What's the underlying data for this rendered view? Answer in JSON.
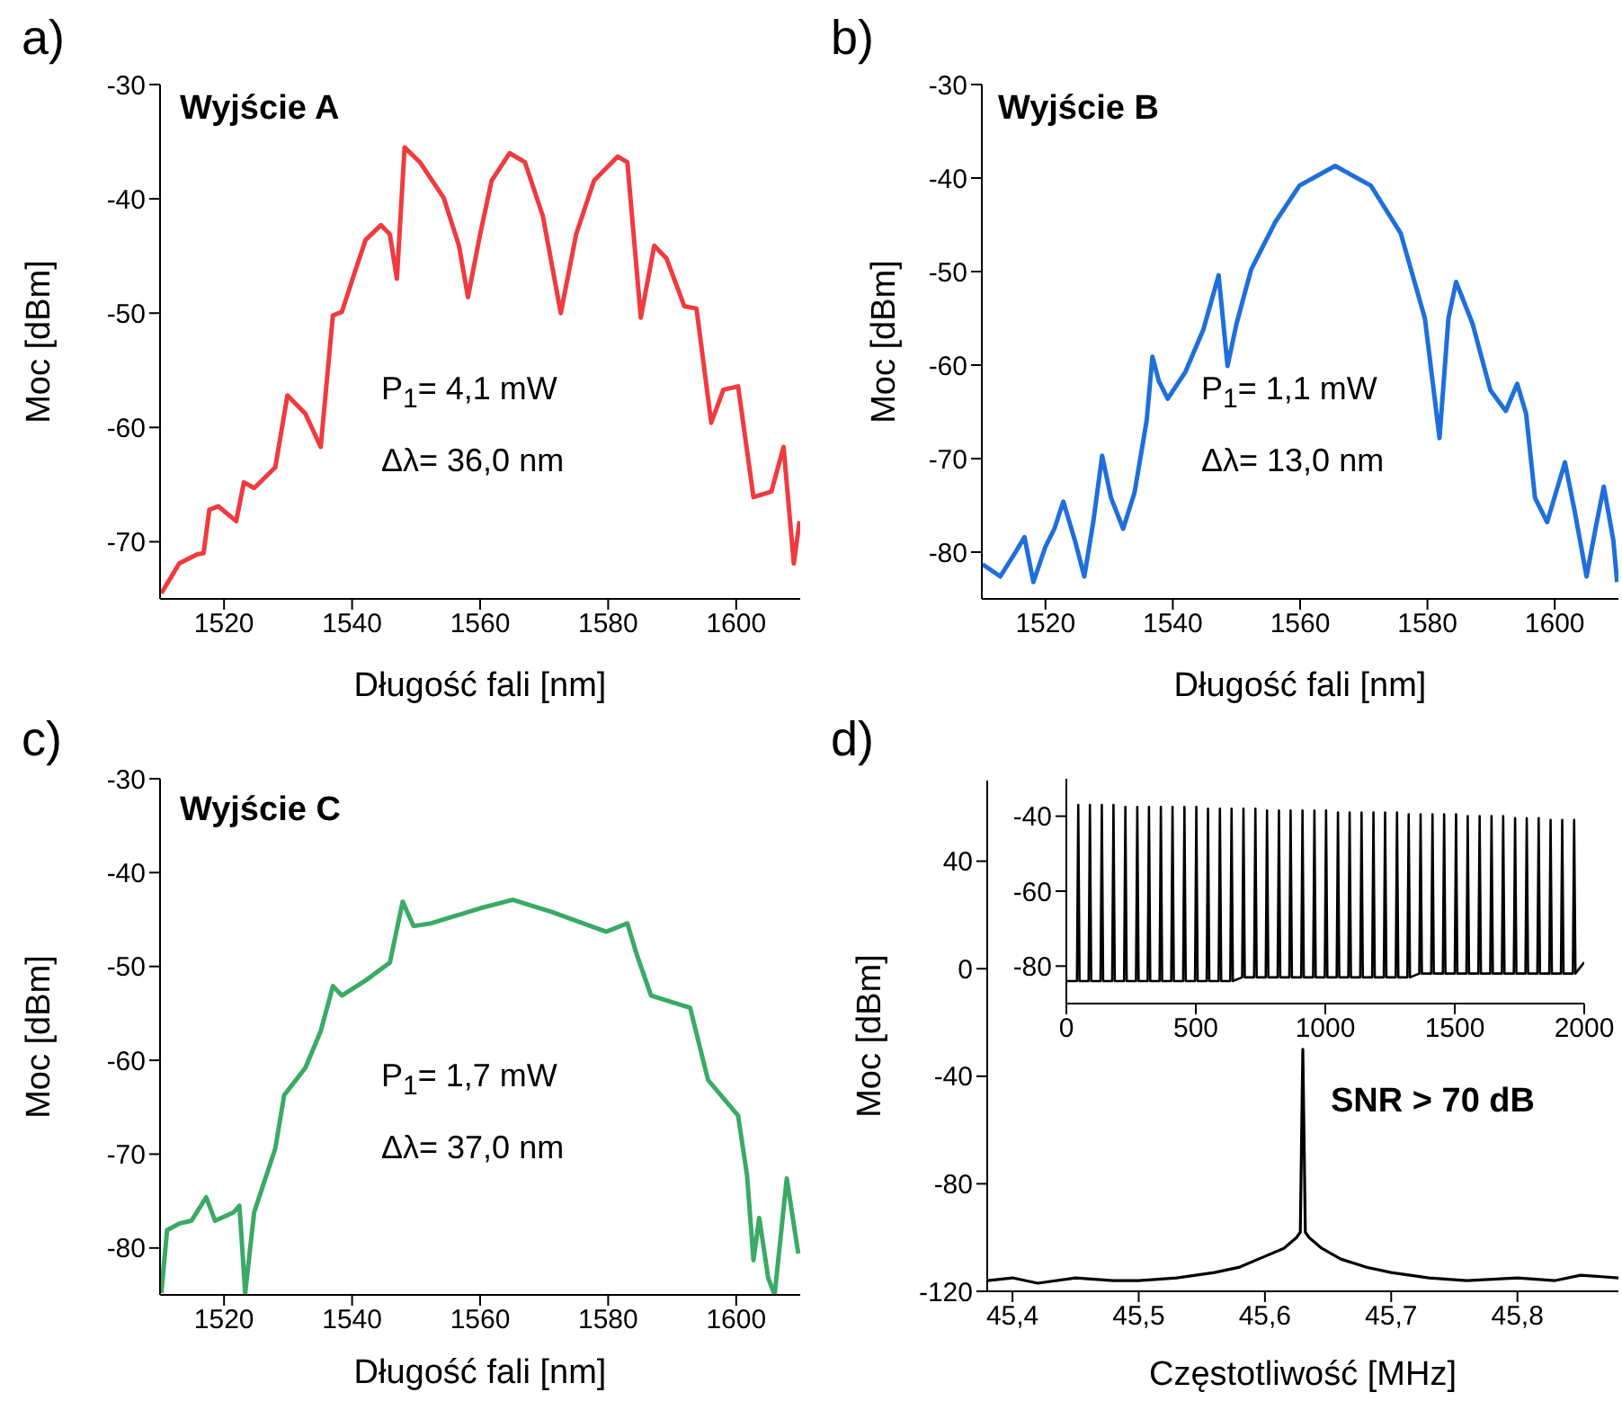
{
  "chart_data": [
    {
      "type": "line",
      "title": "a)",
      "xlabel": "Długość fali [nm]",
      "ylabel": "Moc [dBm]",
      "annotations": [
        "Wyjście A",
        "P$_{1}$= 4,1 mW",
        "Δλ= 36,0 nm"
      ],
      "xlim": [
        1510,
        1610
      ],
      "xticks": [
        1520,
        1540,
        1560,
        1580,
        1600
      ],
      "ylim": [
        -75,
        -30
      ],
      "yticks": [
        -30,
        -40,
        -50,
        -60,
        -70
      ],
      "marker": "none",
      "color": "#ef3b3f",
      "x": [
        1510.2,
        1513,
        1515.8,
        1516.8,
        1517.7,
        1519.1,
        1521.9,
        1523.1,
        1524.7,
        1528,
        1529.9,
        1532.7,
        1535.1,
        1537,
        1538.4,
        1540.2,
        1542.1,
        1544.5,
        1545.9,
        1547,
        1548.2,
        1550.6,
        1554.3,
        1556.7,
        1558.1,
        1560,
        1561.8,
        1564.6,
        1567,
        1569.8,
        1572.6,
        1575,
        1577.8,
        1581.5,
        1583,
        1585.1,
        1587.2,
        1589.1,
        1591.9,
        1593.8,
        1596.1,
        1598,
        1600.3,
        1602.7,
        1605.5,
        1607.4,
        1609,
        1609.9
      ],
      "values": [
        -74.5,
        -71.9,
        -71.1,
        -71,
        -67.2,
        -66.9,
        -68.2,
        -64.8,
        -65.3,
        -63.5,
        -57.2,
        -58.8,
        -61.7,
        -50.2,
        -49.9,
        -46.8,
        -43.6,
        -42.3,
        -43.1,
        -47,
        -35.5,
        -36.8,
        -39.9,
        -44.1,
        -48.6,
        -43.1,
        -38.4,
        -36,
        -36.8,
        -41.5,
        -50,
        -43.1,
        -38.4,
        -36.3,
        -36.8,
        -50.4,
        -44.1,
        -45.2,
        -49.4,
        -49.6,
        -59.6,
        -56.7,
        -56.4,
        -66.1,
        -65.6,
        -61.7,
        -71.9,
        -68.2
      ]
    },
    {
      "type": "line",
      "title": "b)",
      "xlabel": "Długość fali [nm]",
      "ylabel": "Moc [dBm]",
      "annotations": [
        "Wyjście B",
        "P$_{1}$= 1,1 mW",
        "Δλ= 13,0 nm"
      ],
      "xlim": [
        1510,
        1610
      ],
      "xticks": [
        1520,
        1540,
        1560,
        1580,
        1600
      ],
      "ylim": [
        -85,
        -30
      ],
      "yticks": [
        -30,
        -40,
        -50,
        -60,
        -70,
        -80
      ],
      "marker": "none",
      "color": "#1f6fdb",
      "x": [
        1510.1,
        1512.9,
        1515.3,
        1516.7,
        1518.1,
        1520,
        1521.4,
        1522.8,
        1524.6,
        1526.1,
        1527.5,
        1528.9,
        1530.3,
        1532.2,
        1534,
        1535.9,
        1536.8,
        1537.8,
        1539.2,
        1542,
        1544.8,
        1547.2,
        1548.6,
        1550,
        1552.3,
        1556.1,
        1559.9,
        1565.5,
        1571.1,
        1575.8,
        1579.6,
        1581.9,
        1583.3,
        1584.5,
        1587.1,
        1589.9,
        1592.3,
        1594.1,
        1595.5,
        1596.9,
        1598.8,
        1601.6,
        1603.1,
        1605,
        1606.4,
        1607.7,
        1609.2,
        1609.8
      ],
      "values": [
        -81.3,
        -82.6,
        -80,
        -78.4,
        -83.2,
        -79.4,
        -77.5,
        -74.6,
        -78.7,
        -82.6,
        -76.8,
        -69.7,
        -74.2,
        -77.5,
        -73.6,
        -65.9,
        -59.1,
        -61.7,
        -63.6,
        -60.7,
        -56.2,
        -50.4,
        -60.1,
        -55.6,
        -49.8,
        -44.7,
        -40.8,
        -38.7,
        -40.8,
        -45.9,
        -55,
        -67.8,
        -55,
        -51.1,
        -55.6,
        -62.7,
        -64.9,
        -62,
        -65.2,
        -74.2,
        -76.8,
        -70.4,
        -75.5,
        -82.6,
        -77.5,
        -73,
        -78.7,
        -83.2
      ]
    },
    {
      "type": "line",
      "title": "c)",
      "xlabel": "Długość fali [nm]",
      "ylabel": "Moc [dBm]",
      "annotations": [
        "Wyjście C",
        "P$_{1}$= 1,7 mW",
        "Δλ= 37,0 nm"
      ],
      "xlim": [
        1510,
        1610
      ],
      "xticks": [
        1520,
        1540,
        1560,
        1580,
        1600
      ],
      "ylim": [
        -85,
        -30
      ],
      "yticks": [
        -30,
        -40,
        -50,
        -60,
        -70,
        -80
      ],
      "marker": "none",
      "color": "#3aaa66",
      "x": [
        1510.2,
        1511.1,
        1513,
        1514.9,
        1517.2,
        1518.6,
        1521.5,
        1522.4,
        1523.3,
        1524.7,
        1528,
        1529.4,
        1532.7,
        1535.1,
        1537,
        1538.4,
        1542.1,
        1545.9,
        1547.9,
        1549.6,
        1552.4,
        1560,
        1565.1,
        1571.2,
        1579.7,
        1583,
        1584.4,
        1586.7,
        1592.8,
        1595.6,
        1600.3,
        1601.7,
        1602.7,
        1603.6,
        1605,
        1606,
        1607.9,
        1609.7
      ],
      "values": [
        -84.8,
        -78.1,
        -77.4,
        -77.1,
        -74.6,
        -77.1,
        -76.2,
        -75.5,
        -84.8,
        -76.2,
        -69.4,
        -63.7,
        -60.8,
        -56.9,
        -52.1,
        -53.1,
        -51.5,
        -49.6,
        -43.1,
        -45.7,
        -45.4,
        -43.8,
        -42.9,
        -44.2,
        -46.3,
        -45.4,
        -48.6,
        -53.1,
        -54.4,
        -62.1,
        -65.9,
        -72.3,
        -81.3,
        -76.8,
        -83.2,
        -85,
        -72.6,
        -80.6
      ]
    },
    {
      "type": "line",
      "title": "d)",
      "xlabel": "Częstotliwość [MHz]",
      "ylabel": "Moc [dBm]",
      "annotations": [
        "SNR > 70 dB"
      ],
      "xlim": [
        45.38,
        45.88
      ],
      "xticks": [
        {
          "value": 45.4,
          "label": "45,4"
        },
        {
          "value": 45.5,
          "label": "45,5"
        },
        {
          "value": 45.6,
          "label": "45,6"
        },
        {
          "value": 45.7,
          "label": "45,7"
        },
        {
          "value": 45.8,
          "label": "45,8"
        }
      ],
      "ylim": [
        -120,
        70
      ],
      "yticks": [
        40,
        0,
        -40,
        -80,
        -120
      ],
      "marker": "none",
      "color": "#000000",
      "x": [
        45.38,
        45.4,
        45.42,
        45.45,
        45.48,
        45.5,
        45.53,
        45.56,
        45.58,
        45.6,
        45.615,
        45.625,
        45.628,
        45.63,
        45.632,
        45.635,
        45.645,
        45.66,
        45.68,
        45.7,
        45.73,
        45.76,
        45.8,
        45.83,
        45.85,
        45.88
      ],
      "values": [
        -116,
        -115,
        -117,
        -115,
        -116,
        -116,
        -115,
        -113,
        -111,
        -107,
        -104,
        -100,
        -98,
        -30,
        -98,
        -100,
        -104,
        -108,
        -111,
        -113,
        -115,
        -116,
        -115,
        -116,
        -114,
        -115
      ]
    },
    {
      "type": "line",
      "xlim": [
        0,
        2000
      ],
      "xticks": [
        0,
        500,
        1000,
        1500,
        2000
      ],
      "ylim": [
        -90,
        -30
      ],
      "yticks": [
        -40,
        -60,
        -80
      ],
      "marker": "none",
      "color": "#000000",
      "x": [
        0,
        41,
        46,
        51,
        86,
        91,
        96,
        132,
        137,
        142,
        177,
        182,
        187,
        223,
        228,
        233,
        269,
        274,
        279,
        314,
        319,
        324,
        360,
        365,
        370,
        405,
        410,
        415,
        451,
        456,
        461,
        497,
        502,
        507,
        542,
        547,
        552,
        588,
        593,
        598,
        633,
        638,
        643,
        679,
        684,
        689,
        725,
        730,
        735,
        770,
        775,
        780,
        816,
        821,
        826,
        861,
        866,
        871,
        907,
        912,
        917,
        953,
        958,
        963,
        998,
        1003,
        1008,
        1044,
        1049,
        1054,
        1089,
        1094,
        1099,
        1135,
        1140,
        1145,
        1181,
        1186,
        1191,
        1226,
        1231,
        1236,
        1272,
        1277,
        1282,
        1317,
        1322,
        1327,
        1363,
        1368,
        1373,
        1409,
        1414,
        1419,
        1454,
        1459,
        1464,
        1500,
        1505,
        1510,
        1545,
        1550,
        1555,
        1591,
        1596,
        1601,
        1637,
        1642,
        1647,
        1682,
        1687,
        1692,
        1728,
        1733,
        1738,
        1773,
        1778,
        1783,
        1819,
        1824,
        1829,
        1865,
        1870,
        1875,
        1910,
        1915,
        1920,
        1956,
        1961,
        1966,
        2000
      ],
      "values": [
        -84,
        -84,
        -37,
        -84,
        -84,
        -37,
        -84,
        -84,
        -37,
        -84,
        -84,
        -37,
        -84,
        -84,
        -37.5,
        -84,
        -84,
        -37.5,
        -84,
        -84,
        -37.5,
        -84,
        -84,
        -37.5,
        -84,
        -84,
        -37.5,
        -84,
        -84,
        -37.5,
        -84,
        -84,
        -37.5,
        -84,
        -84,
        -38,
        -84,
        -84,
        -38,
        -84,
        -84,
        -38,
        -84,
        -83,
        -38,
        -83,
        -83,
        -38,
        -83,
        -83,
        -38.5,
        -83,
        -83,
        -38.5,
        -83,
        -83,
        -38.5,
        -83,
        -83,
        -38.5,
        -83,
        -83,
        -38.5,
        -83,
        -83,
        -38.5,
        -83,
        -83,
        -39,
        -83,
        -83,
        -39,
        -83,
        -83,
        -39,
        -83,
        -83,
        -39,
        -83,
        -83,
        -39,
        -83,
        -83,
        -39,
        -83,
        -83,
        -39.5,
        -83,
        -82,
        -39.5,
        -82,
        -82,
        -39.5,
        -82,
        -82,
        -39.5,
        -82,
        -82,
        -39.5,
        -82,
        -82,
        -40,
        -82,
        -82,
        -40,
        -82,
        -82,
        -40,
        -82,
        -82,
        -40,
        -82,
        -82,
        -40.5,
        -82,
        -82,
        -40.5,
        -82,
        -82,
        -40.5,
        -82,
        -82,
        -41,
        -82,
        -82,
        -41,
        -82,
        -82,
        -41,
        -82,
        -79
      ]
    }
  ]
}
